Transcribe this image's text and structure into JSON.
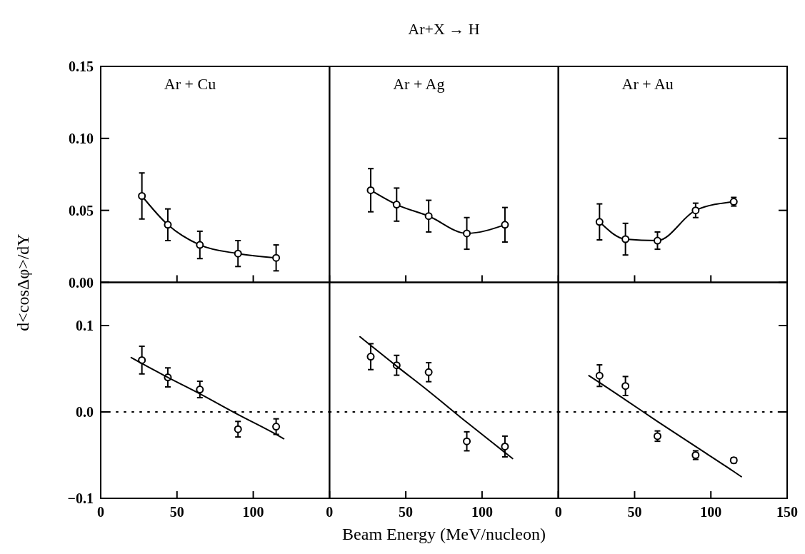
{
  "chart_data": [
    {
      "type": "line",
      "ylabel": "d<cosΔφ>/dY",
      "annotations": [
        "Ar + Cu"
      ],
      "tick_labels": "y",
      "marker": "circle",
      "line_style": "solid",
      "xlim": [
        0,
        150
      ],
      "xticks": [
        0,
        50,
        100
      ],
      "ylim": [
        0,
        0.15
      ],
      "yticks": [
        {
          "value": 0,
          "label": "0.00"
        },
        {
          "value": 0.05,
          "label": "0.05"
        },
        {
          "value": 0.1,
          "label": "0.10"
        },
        {
          "value": 0.15,
          "label": "0.15"
        }
      ],
      "x": [
        27,
        44,
        65,
        90,
        115
      ],
      "series": [
        {
          "color": "#000000",
          "values": [
            0.06,
            0.04,
            0.026,
            0.02,
            0.017
          ],
          "errors": [
            0.016,
            0.011,
            0.0095,
            0.009,
            0.009
          ]
        }
      ]
    },
    {
      "type": "line",
      "title": "Ar+X → H",
      "annotations": [
        "Ar + Ag"
      ],
      "tick_labels": false,
      "marker": "circle",
      "line_style": "solid",
      "xlim": [
        0,
        150
      ],
      "xticks": [
        0,
        50,
        100
      ],
      "ylim": [
        0,
        0.15
      ],
      "yticks": [
        0,
        0.05,
        0.1,
        0.15
      ],
      "x": [
        27,
        44,
        65,
        90,
        115
      ],
      "series": [
        {
          "color": "#000000",
          "values": [
            0.064,
            0.054,
            0.046,
            0.034,
            0.04
          ],
          "errors": [
            0.015,
            0.0115,
            0.011,
            0.011,
            0.012
          ]
        }
      ]
    },
    {
      "type": "line",
      "annotations": [
        "Ar + Au"
      ],
      "tick_labels": false,
      "marker": "circle",
      "line_style": "solid",
      "xlim": [
        0,
        150
      ],
      "xticks": [
        0,
        50,
        100
      ],
      "ylim": [
        0,
        0.15
      ],
      "yticks": [
        0,
        0.05,
        0.1,
        0.15
      ],
      "x": [
        27,
        44,
        65,
        90,
        115
      ],
      "series": [
        {
          "color": "#000000",
          "values": [
            0.042,
            0.03,
            0.029,
            0.05,
            0.056
          ],
          "errors": [
            0.0125,
            0.011,
            0.006,
            0.005,
            0.003
          ]
        }
      ]
    },
    {
      "type": "scatter",
      "marker": "circle",
      "xlim": [
        0,
        150
      ],
      "xticks": [
        0,
        50,
        100
      ],
      "ylim": [
        -0.1,
        0.15
      ],
      "yticks": [
        {
          "value": -0.1,
          "label": "−0.1"
        },
        {
          "value": 0,
          "label": "0.0"
        },
        {
          "value": 0.1,
          "label": "0.1"
        }
      ],
      "x": [
        20,
        27,
        44,
        65,
        90,
        115,
        120
      ],
      "ref_lines": [
        {
          "axis": "y",
          "value": 0,
          "line_style": "dotted"
        }
      ],
      "series": [
        {
          "color": "#000000",
          "values": [
            null,
            0.06,
            0.04,
            0.026,
            -0.02,
            -0.017,
            null
          ],
          "errors": [
            null,
            0.016,
            0.011,
            0.0095,
            0.009,
            0.009,
            null
          ]
        },
        {
          "type": "line",
          "marker": "none",
          "color": "#000000",
          "values": [
            0.063,
            0.056,
            0.04,
            0.021,
            -0.003,
            -0.026,
            -0.031
          ]
        }
      ]
    },
    {
      "type": "scatter",
      "xlabel": "Beam Energy (MeV/nucleon)",
      "tick_labels": "x",
      "marker": "circle",
      "xlim": [
        0,
        150
      ],
      "xticks": [
        0,
        50,
        100
      ],
      "ylim": [
        -0.1,
        0.15
      ],
      "yticks": [
        -0.1,
        0,
        0.1
      ],
      "x": [
        20,
        27,
        44,
        65,
        90,
        115,
        120
      ],
      "ref_lines": [
        {
          "axis": "y",
          "value": 0,
          "line_style": "dotted"
        }
      ],
      "series": [
        {
          "color": "#000000",
          "values": [
            null,
            0.064,
            0.054,
            0.046,
            -0.034,
            -0.04,
            null
          ],
          "errors": [
            null,
            0.015,
            0.0115,
            0.011,
            0.011,
            0.012,
            null
          ]
        },
        {
          "type": "line",
          "marker": "none",
          "color": "#000000",
          "values": [
            0.087,
            0.077,
            0.053,
            0.024,
            -0.012,
            -0.047,
            -0.054
          ]
        }
      ]
    },
    {
      "type": "scatter",
      "tick_labels": "x",
      "marker": "circle",
      "xlim": [
        0,
        150
      ],
      "xticks": [
        0,
        50,
        100,
        150
      ],
      "ylim": [
        -0.1,
        0.15
      ],
      "yticks": [
        -0.1,
        0,
        0.1
      ],
      "x": [
        20,
        27,
        44,
        65,
        90,
        115,
        120
      ],
      "ref_lines": [
        {
          "axis": "y",
          "value": 0,
          "line_style": "dotted"
        }
      ],
      "series": [
        {
          "color": "#000000",
          "values": [
            null,
            0.042,
            0.03,
            -0.028,
            -0.05,
            -0.056,
            null
          ],
          "errors": [
            null,
            0.0125,
            0.011,
            0.006,
            0.005,
            0.003,
            null
          ]
        },
        {
          "type": "line",
          "marker": "none",
          "color": "#000000",
          "values": [
            0.042,
            0.034,
            0.014,
            -0.011,
            -0.04,
            -0.069,
            -0.075
          ]
        }
      ]
    }
  ]
}
